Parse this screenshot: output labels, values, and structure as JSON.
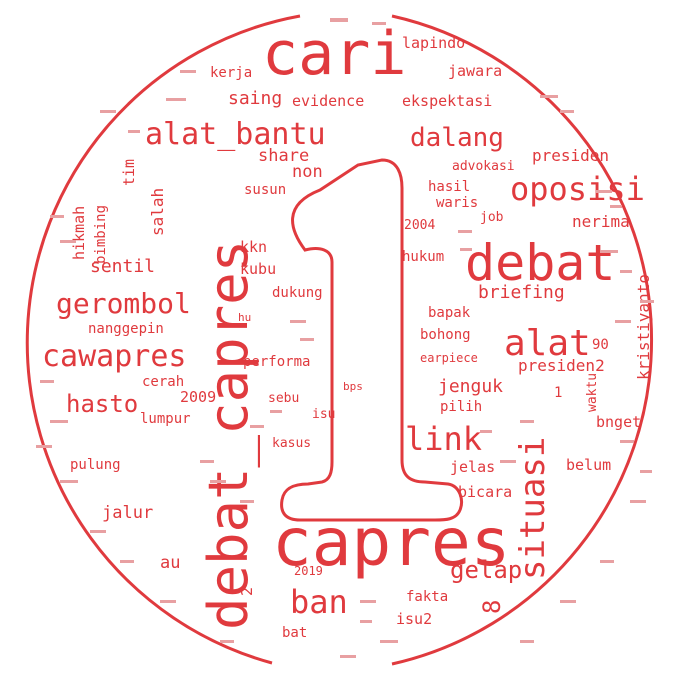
{
  "colors": {
    "word": "#e03a3e",
    "background": "#ffffff"
  },
  "shape": {
    "name": "digit-one-in-circle-mask",
    "text": "1"
  },
  "words": [
    {
      "text": "capres"
    },
    {
      "text": "debat_capres"
    },
    {
      "text": "cari"
    },
    {
      "text": "debat"
    },
    {
      "text": "situasi"
    },
    {
      "text": "alat_bantu"
    },
    {
      "text": "oposisi"
    },
    {
      "text": "alat"
    },
    {
      "text": "cawapres"
    },
    {
      "text": "gerombol"
    },
    {
      "text": "dalang"
    },
    {
      "text": "link"
    },
    {
      "text": "ban"
    },
    {
      "text": "hasto"
    },
    {
      "text": "gelap"
    },
    {
      "text": "sentil"
    },
    {
      "text": "jenguk"
    },
    {
      "text": "kristiyanto"
    },
    {
      "text": "briefing"
    },
    {
      "text": "saing"
    },
    {
      "text": "share"
    },
    {
      "text": "non"
    },
    {
      "text": "presiden"
    },
    {
      "text": "presiden2"
    },
    {
      "text": "nerima"
    },
    {
      "text": "lapindo"
    },
    {
      "text": "jawara"
    },
    {
      "text": "evidence"
    },
    {
      "text": "ekspektasi"
    },
    {
      "text": "kerja"
    },
    {
      "text": "advokasi"
    },
    {
      "text": "hasil"
    },
    {
      "text": "waris"
    },
    {
      "text": "susun"
    },
    {
      "text": "tim"
    },
    {
      "text": "salah"
    },
    {
      "text": "hikmah"
    },
    {
      "text": "bimbing"
    },
    {
      "text": "kkn"
    },
    {
      "text": "kubu"
    },
    {
      "text": "dukung"
    },
    {
      "text": "nanggepin"
    },
    {
      "text": "performa"
    },
    {
      "text": "cerah"
    },
    {
      "text": "2009"
    },
    {
      "text": "lumpur"
    },
    {
      "text": "sebu"
    },
    {
      "text": "isu"
    },
    {
      "text": "kasus"
    },
    {
      "text": "pulung"
    },
    {
      "text": "jalur"
    },
    {
      "text": "au"
    },
    {
      "text": "2"
    },
    {
      "text": "2019"
    },
    {
      "text": "fakta"
    },
    {
      "text": "isu2"
    },
    {
      "text": "bat"
    },
    {
      "text": "8"
    },
    {
      "text": "bicara"
    },
    {
      "text": "jelas"
    },
    {
      "text": "belum"
    },
    {
      "text": "bnget"
    },
    {
      "text": "waktu"
    },
    {
      "text": "pilih"
    },
    {
      "text": "bohong"
    },
    {
      "text": "bapak"
    },
    {
      "text": "earpiece"
    },
    {
      "text": "90"
    },
    {
      "text": "hukum"
    },
    {
      "text": "2004"
    },
    {
      "text": "job"
    },
    {
      "text": "1"
    },
    {
      "text": "hu"
    },
    {
      "text": "bps"
    }
  ]
}
